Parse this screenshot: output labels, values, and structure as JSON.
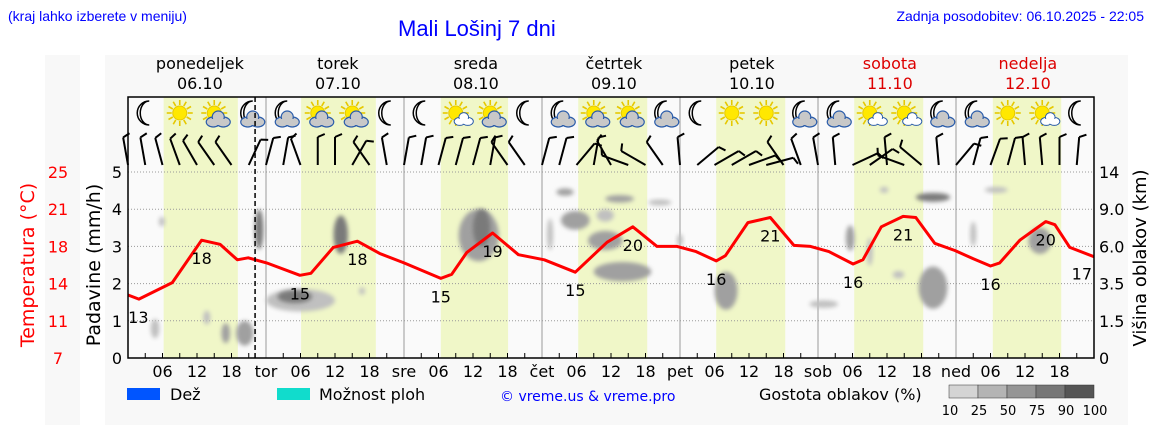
{
  "header": {
    "hint": "(kraj lahko izberete v meniju)",
    "title": "Mali Lošinj 7 dni",
    "updated": "Zadnja posodobitev: 06.10.2025 - 22:05"
  },
  "days": [
    {
      "name": "ponedeljek",
      "date": "06.10",
      "abbr": "",
      "weekend": false,
      "daylight": [
        6.2,
        19.1
      ],
      "icons": [
        "moon",
        "sun",
        "sun-cloud",
        "moon-cloud"
      ]
    },
    {
      "name": "torek",
      "date": "07.10",
      "abbr": "tor",
      "weekend": false,
      "daylight": [
        6.1,
        19.1
      ],
      "icons": [
        "moon-cloud",
        "sun-cloud",
        "sun-cloud",
        "moon"
      ]
    },
    {
      "name": "sreda",
      "date": "08.10",
      "abbr": "sre",
      "weekend": false,
      "daylight": [
        6.4,
        18.1
      ],
      "icons": [
        "moon",
        "sun-small-cloud",
        "sun-cloud",
        "moon"
      ]
    },
    {
      "name": "četrtek",
      "date": "09.10",
      "abbr": "čet",
      "weekend": false,
      "daylight": [
        6.3,
        18.3
      ],
      "icons": [
        "moon-cloud",
        "sun-cloud",
        "sun-cloud",
        "moon-cloud"
      ]
    },
    {
      "name": "petek",
      "date": "10.10",
      "abbr": "pet",
      "weekend": false,
      "daylight": [
        6.3,
        18.3
      ],
      "icons": [
        "moon",
        "sun",
        "sun",
        "moon-cloud"
      ]
    },
    {
      "name": "sobota",
      "date": "11.10",
      "abbr": "sob",
      "weekend": true,
      "daylight": [
        6.3,
        18.3
      ],
      "icons": [
        "moon-cloud",
        "sun-small-cloud",
        "sun-small-cloud",
        "moon-cloud"
      ]
    },
    {
      "name": "nedelja",
      "date": "12.10",
      "abbr": "ned",
      "weekend": true,
      "daylight": [
        6.4,
        18.3
      ],
      "icons": [
        "moon-cloud",
        "sun",
        "sun-small-cloud",
        "moon"
      ]
    }
  ],
  "hour_ticks": [
    "06",
    "12",
    "18"
  ],
  "now_hour": 22.1,
  "chart_data": {
    "type": "line",
    "title": "Mali Lošinj 7 dni",
    "xlabel": "",
    "x_unit": "hours from 06.10 00:00",
    "xlim": [
      0,
      168
    ],
    "axes": {
      "precip": {
        "label": "Padavine (mm/h)",
        "ticks": [
          "0",
          "1",
          "2",
          "3",
          "4",
          "5"
        ],
        "ylim": [
          0,
          5
        ]
      },
      "temp": {
        "label": "Temperatura (°C)",
        "ticks": [
          "7",
          "11",
          "14",
          "18",
          "21",
          "25"
        ],
        "ylim": [
          7,
          25
        ]
      },
      "cloud": {
        "label": "Višina oblakov (km)",
        "ticks": [
          "0",
          "1.5",
          "3.5",
          "6.0",
          "9.0",
          "14"
        ],
        "values": [
          0,
          1.5,
          3.5,
          6.0,
          9.0,
          14
        ]
      }
    },
    "grid": true,
    "series": [
      {
        "name": "Temperatura",
        "color": "#ff0000",
        "points": [
          [
            0,
            13.1
          ],
          [
            1.9,
            12.7
          ],
          [
            7.7,
            14.3
          ],
          [
            12.8,
            18.4
          ],
          [
            16,
            18.0
          ],
          [
            19,
            16.5
          ],
          [
            20.9,
            16.7
          ],
          [
            24.1,
            16.2
          ],
          [
            29.9,
            15.0
          ],
          [
            31.8,
            15.2
          ],
          [
            35.7,
            17.7
          ],
          [
            39.9,
            18.3
          ],
          [
            43.8,
            17.1
          ],
          [
            48,
            16.2
          ],
          [
            54.4,
            14.7
          ],
          [
            56.3,
            15.1
          ],
          [
            58.9,
            17.2
          ],
          [
            63.4,
            19.1
          ],
          [
            67.9,
            17.0
          ],
          [
            72.4,
            16.5
          ],
          [
            77.8,
            15.3
          ],
          [
            83.3,
            18.2
          ],
          [
            87.8,
            19.7
          ],
          [
            92,
            17.8
          ],
          [
            95.5,
            17.8
          ],
          [
            98.8,
            17.3
          ],
          [
            102.3,
            16.4
          ],
          [
            103.9,
            16.9
          ],
          [
            107.8,
            20.1
          ],
          [
            111.7,
            20.6
          ],
          [
            115.8,
            17.9
          ],
          [
            118.7,
            17.8
          ],
          [
            121.9,
            17.3
          ],
          [
            126.1,
            16.1
          ],
          [
            127.8,
            16.5
          ],
          [
            131,
            19.7
          ],
          [
            134.8,
            20.7
          ],
          [
            137,
            20.6
          ],
          [
            140.3,
            18.1
          ],
          [
            143.8,
            17.4
          ],
          [
            147,
            16.6
          ],
          [
            150,
            15.9
          ],
          [
            151.6,
            16.2
          ],
          [
            155.1,
            18.4
          ],
          [
            159.6,
            20.2
          ],
          [
            161.2,
            19.9
          ],
          [
            163.8,
            17.7
          ],
          [
            168,
            16.8
          ]
        ]
      }
    ],
    "temp_labels": [
      {
        "hour": 1.8,
        "text": "13"
      },
      {
        "hour": 12.8,
        "text": "18"
      },
      {
        "hour": 29.9,
        "text": "15"
      },
      {
        "hour": 39.9,
        "text": "18"
      },
      {
        "hour": 54.4,
        "text": "15"
      },
      {
        "hour": 63.4,
        "text": "19"
      },
      {
        "hour": 77.8,
        "text": "15"
      },
      {
        "hour": 87.8,
        "text": "20"
      },
      {
        "hour": 102.3,
        "text": "16"
      },
      {
        "hour": 111.7,
        "text": "21"
      },
      {
        "hour": 126.1,
        "text": "16"
      },
      {
        "hour": 134.8,
        "text": "21"
      },
      {
        "hour": 150,
        "text": "16"
      },
      {
        "hour": 159.6,
        "text": "20"
      },
      {
        "hour": 167.5,
        "text": "17"
      }
    ],
    "wind_dir_deg": [
      -10,
      -10,
      -15,
      -20,
      -30,
      -35,
      -35,
      25,
      15,
      10,
      -20,
      0,
      0,
      30,
      -35,
      -10,
      10,
      10,
      15,
      15,
      15,
      10,
      -35,
      -35,
      15,
      15,
      40,
      10,
      -30,
      -70,
      -60,
      -35,
      -5,
      50,
      60,
      60,
      70,
      75,
      -35,
      -20,
      -10,
      -5,
      65,
      55,
      -5,
      -70,
      -50,
      -5,
      40,
      15,
      20,
      15,
      -5,
      -5,
      0,
      5
    ],
    "clouds": [
      {
        "hour": 4.7,
        "km": 1.2,
        "dh": 1.5,
        "dkm": 0.8,
        "density": 25
      },
      {
        "hour": 13.7,
        "km": 1.7,
        "dh": 1.2,
        "dkm": 0.7,
        "density": 25
      },
      {
        "hour": 17,
        "km": 1.0,
        "dh": 1.5,
        "dkm": 0.8,
        "density": 50
      },
      {
        "hour": 20.3,
        "km": 1.0,
        "dh": 3,
        "dkm": 1.0,
        "density": 50
      },
      {
        "hour": 5.9,
        "km": 8.0,
        "dh": 1,
        "dkm": 0.8,
        "density": 25
      },
      {
        "hour": 22.8,
        "km": 7.4,
        "dh": 1.5,
        "dkm": 3.2,
        "density": 75
      },
      {
        "hour": 30,
        "km": 2.6,
        "dh": 12,
        "dkm": 1.2,
        "density": 25
      },
      {
        "hour": 29,
        "km": 2.8,
        "dh": 6,
        "dkm": 0.7,
        "density": 75
      },
      {
        "hour": 37,
        "km": 7,
        "dh": 2.5,
        "dkm": 3,
        "density": 75
      },
      {
        "hour": 40.7,
        "km": 3.1,
        "dh": 1,
        "dkm": 0.4,
        "density": 25
      },
      {
        "hour": 61,
        "km": 7,
        "dh": 7,
        "dkm": 4,
        "density": 50
      },
      {
        "hour": 61.5,
        "km": 7.5,
        "dh": 3,
        "dkm": 3,
        "density": 75
      },
      {
        "hour": 76,
        "km": 11.3,
        "dh": 3,
        "dkm": 1,
        "density": 50
      },
      {
        "hour": 77.8,
        "km": 8.1,
        "dh": 5,
        "dkm": 1.5,
        "density": 50
      },
      {
        "hour": 73.4,
        "km": 7,
        "dh": 1,
        "dkm": 2.5,
        "density": 25
      },
      {
        "hour": 83,
        "km": 8.5,
        "dh": 3,
        "dkm": 1,
        "density": 25
      },
      {
        "hour": 85.5,
        "km": 10.4,
        "dh": 5,
        "dkm": 1,
        "density": 50
      },
      {
        "hour": 92.5,
        "km": 9.9,
        "dh": 4,
        "dkm": 0.7,
        "density": 25
      },
      {
        "hour": 86,
        "km": 4.3,
        "dh": 10,
        "dkm": 1.3,
        "density": 50
      },
      {
        "hour": 83,
        "km": 6.5,
        "dh": 6,
        "dkm": 1.5,
        "density": 50
      },
      {
        "hour": 104,
        "km": 3.2,
        "dh": 4,
        "dkm": 2.2,
        "density": 50
      },
      {
        "hour": 96,
        "km": 6.5,
        "dh": 0.5,
        "dkm": 1,
        "density": 25
      },
      {
        "hour": 121,
        "km": 2.4,
        "dh": 5,
        "dkm": 0.4,
        "density": 25
      },
      {
        "hour": 125.6,
        "km": 6.7,
        "dh": 1.5,
        "dkm": 2,
        "density": 50
      },
      {
        "hour": 129,
        "km": 5.7,
        "dh": 1,
        "dkm": 2,
        "density": 25
      },
      {
        "hour": 140,
        "km": 10.6,
        "dh": 6,
        "dkm": 1.2,
        "density": 75
      },
      {
        "hour": 140,
        "km": 3.4,
        "dh": 5,
        "dkm": 2.5,
        "density": 50
      },
      {
        "hour": 134,
        "km": 4.1,
        "dh": 2,
        "dkm": 0.5,
        "density": 25
      },
      {
        "hour": 147,
        "km": 7,
        "dh": 0.7,
        "dkm": 2,
        "density": 25
      },
      {
        "hour": 158.6,
        "km": 6.5,
        "dh": 4,
        "dkm": 2,
        "density": 50
      },
      {
        "hour": 151,
        "km": 11.6,
        "dh": 4,
        "dkm": 0.5,
        "density": 25
      },
      {
        "hour": 131.5,
        "km": 11.6,
        "dh": 1.5,
        "dkm": 0.4,
        "density": 25
      }
    ]
  },
  "legend": {
    "rain_label": "Dež",
    "rain_color": "#0055ff",
    "shower_label": "Možnost ploh",
    "shower_color": "#11dccc",
    "copyright": "© vreme.us & vreme.pro",
    "cloud_density_label": "Gostota oblakov (%)",
    "cloud_density_steps": [
      {
        "label": "10",
        "color": "#d4d4d4"
      },
      {
        "label": "25",
        "color": "#b4b4b4"
      },
      {
        "label": "50",
        "color": "#959595"
      },
      {
        "label": "75",
        "color": "#767676"
      },
      {
        "label": "90",
        "color": "#555555"
      },
      {
        "label": "100",
        "color": "#3a3a3a"
      }
    ]
  },
  "colors": {
    "daylight": "#f0f7c8",
    "panel": "#f8f8f8",
    "weekend": "#dd0000",
    "axis_red": "#ff0000"
  }
}
